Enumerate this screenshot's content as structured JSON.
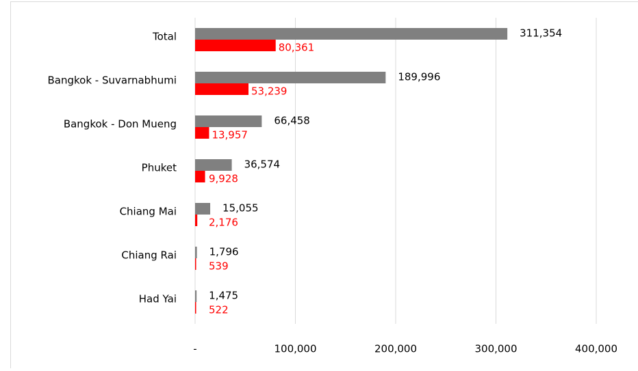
{
  "chart_data": {
    "type": "bar",
    "orientation": "horizontal",
    "categories": [
      "Total",
      "Bangkok - Suvarnabhumi",
      "Bangkok - Don Mueng",
      "Phuket",
      "Chiang Mai",
      "Chiang Rai",
      "Had Yai"
    ],
    "series": [
      {
        "color": "#808080",
        "values": [
          311354,
          189996,
          66458,
          36574,
          15055,
          1796,
          1475
        ],
        "value_labels": [
          "311,354",
          "189,996",
          "66,458",
          "36,574",
          "15,055",
          "1,796",
          "1,475"
        ]
      },
      {
        "color": "#ff0000",
        "values": [
          80361,
          53239,
          13957,
          9928,
          2176,
          539,
          522
        ],
        "value_labels": [
          "80,361",
          "53,239",
          "13,957",
          "9,928",
          "2,176",
          "539",
          "522"
        ]
      }
    ],
    "xlim": [
      0,
      400000
    ],
    "xticks": [
      {
        "value": 0,
        "label": "-"
      },
      {
        "value": 100000,
        "label": "100,000"
      },
      {
        "value": 200000,
        "label": "200,000"
      },
      {
        "value": 300000,
        "label": "300,000"
      },
      {
        "value": 400000,
        "label": "400,000"
      }
    ],
    "grid": true
  }
}
